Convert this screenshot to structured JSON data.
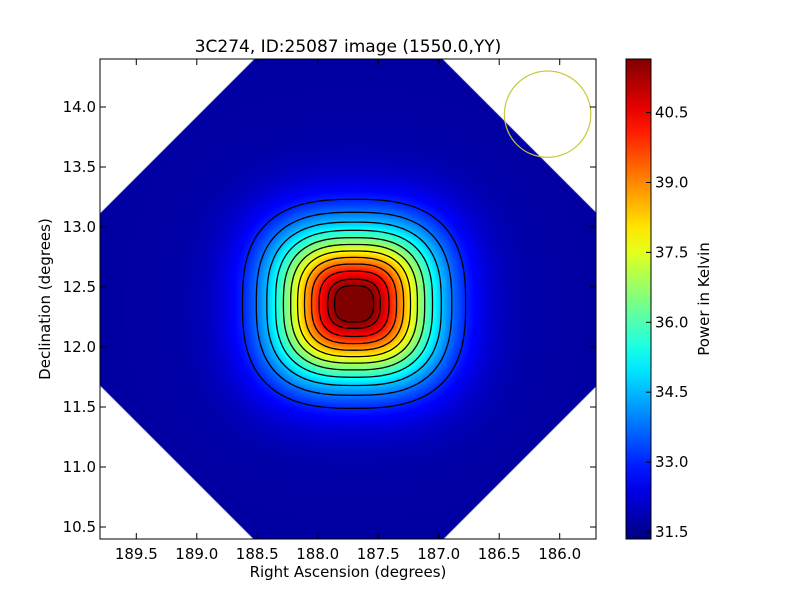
{
  "chart_data": {
    "type": "heatmap",
    "title": "3C274, ID:25087 image (1550.0,YY)",
    "xlabel": "Right Ascension (degrees)",
    "ylabel": "Declination (degrees)",
    "xlim": [
      189.8,
      185.7
    ],
    "ylim": [
      10.4,
      14.4
    ],
    "x_inverted": true,
    "xticks": [
      189.5,
      189.0,
      188.5,
      188.0,
      187.5,
      187.0,
      186.5,
      186.0
    ],
    "xtick_labels": [
      "189.5",
      "189.0",
      "188.5",
      "188.0",
      "187.5",
      "187.0",
      "186.5",
      "186.0"
    ],
    "yticks": [
      10.5,
      11.0,
      11.5,
      12.0,
      12.5,
      13.0,
      13.5,
      14.0
    ],
    "ytick_labels": [
      "10.5",
      "11.0",
      "11.5",
      "12.0",
      "12.5",
      "13.0",
      "13.5",
      "14.0"
    ],
    "colorbar": {
      "label": "Power in Kelvin",
      "colormap": "jet",
      "range": [
        31.35,
        41.65
      ],
      "ticks": [
        31.5,
        33.0,
        34.5,
        36.0,
        37.5,
        39.0,
        40.5
      ],
      "tick_labels": [
        "31.5",
        "33.0",
        "34.5",
        "36.0",
        "37.5",
        "39.0",
        "40.5"
      ]
    },
    "source": {
      "ra": 187.7,
      "dec": 12.36,
      "peak": 41.6,
      "background": 31.7
    },
    "contour_levels": [
      33.0,
      33.8,
      34.6,
      35.4,
      36.2,
      37.0,
      37.8,
      38.6,
      39.4,
      40.2,
      41.0,
      41.5
    ],
    "beam": {
      "ra": 186.1,
      "dec": 13.94,
      "radius_deg": 0.36,
      "color": "#c8c83a"
    },
    "grid": false,
    "colors": {
      "axes_edge": "#000000",
      "contour": "#000000"
    }
  }
}
